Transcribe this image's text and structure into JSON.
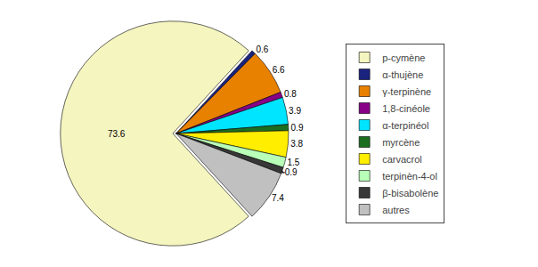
{
  "chart_data": {
    "type": "pie",
    "categories": [
      "p-cymène",
      "α-thujène",
      "γ-terpinène",
      "1,8-cinéole",
      "α-terpinéol",
      "myrcène",
      "carvacrol",
      "terpinèn-4-ol",
      "β-bisabolène",
      "autres"
    ],
    "values": [
      73.6,
      0.6,
      6.6,
      0.8,
      3.9,
      0.9,
      3.8,
      1.5,
      0.9,
      7.4
    ],
    "colors": [
      "#f5f5c0",
      "#1a237e",
      "#e88000",
      "#880088",
      "#00e5ff",
      "#1b6e20",
      "#ffee00",
      "#b8ffb8",
      "#383838",
      "#c0c0c0"
    ],
    "data_labels": true,
    "legend": "right"
  }
}
